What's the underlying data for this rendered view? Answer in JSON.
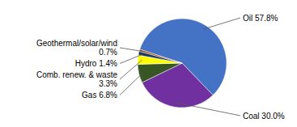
{
  "chart_data": {
    "type": "pie",
    "categories": [
      "Oil 57.8%",
      "Coal 30.0%",
      "Gas 6.8%",
      "Comb. renew. & waste\n3.3%",
      "Hydro 1.4%",
      "Geothermal/solar/wind\n0.7%"
    ],
    "values": [
      57.8,
      30.0,
      6.8,
      3.3,
      1.4,
      0.7
    ],
    "colors": [
      "#4472C4",
      "#7030A0",
      "#375623",
      "#FFFF00",
      "#17375E",
      "#974706"
    ]
  }
}
